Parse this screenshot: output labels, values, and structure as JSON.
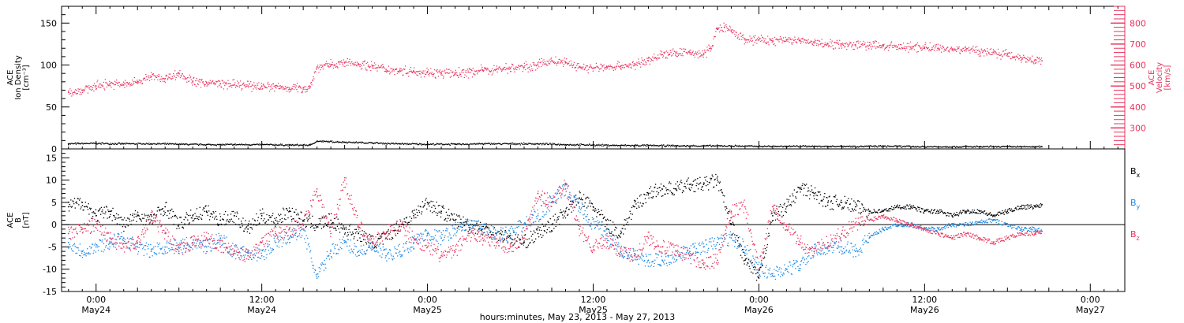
{
  "chart_data": [
    {
      "type": "scatter",
      "panel": "top",
      "ylabel_left": [
        "ACE",
        "Ion Density",
        "[cm⁻³]"
      ],
      "ylabel_right": [
        "ACE",
        "Velocity",
        "[km/s]"
      ],
      "ylim_left": [
        0,
        170
      ],
      "yticks_left": [
        0,
        50,
        100,
        150
      ],
      "ylim_right": [
        200,
        880
      ],
      "yticks_right": [
        300,
        400,
        500,
        600,
        700,
        800
      ],
      "colors": {
        "density": "#000000",
        "velocity": "#e8335e"
      },
      "series": [
        {
          "key": "density",
          "axis": "left",
          "x_hours": [
            -2,
            0,
            2,
            4,
            6,
            8,
            10,
            12,
            14,
            15.5,
            16,
            18,
            20,
            22,
            24,
            26,
            28,
            30,
            32,
            34,
            36,
            38,
            40,
            42,
            44,
            46,
            48,
            50,
            52,
            54,
            56,
            58,
            60,
            62,
            64,
            66,
            68,
            68.5
          ],
          "values": [
            6,
            6.5,
            6,
            6,
            5.5,
            5,
            5,
            5,
            4.5,
            4.5,
            9,
            8,
            7,
            6,
            5.5,
            5.5,
            6,
            6,
            6,
            5,
            4.5,
            4,
            4,
            3.5,
            3.5,
            3.5,
            3,
            3,
            3,
            3,
            3,
            3,
            2.5,
            2.5,
            2.5,
            2.5,
            2.5,
            2.5
          ]
        },
        {
          "key": "velocity",
          "axis": "right",
          "x_hours": [
            -2,
            -1,
            0,
            1,
            2,
            3,
            4,
            5,
            6,
            7,
            8,
            9,
            10,
            11,
            12,
            13,
            14,
            15,
            15.5,
            16,
            17,
            18,
            19,
            20,
            21,
            22,
            23,
            24,
            25,
            26,
            27,
            28,
            29,
            30,
            31,
            32,
            33,
            34,
            35,
            36,
            37,
            38,
            39,
            40,
            41,
            42,
            43,
            44,
            44.5,
            45,
            45.5,
            46,
            47,
            48,
            49,
            50,
            51,
            52,
            53,
            54,
            55,
            56,
            57,
            58,
            59,
            60,
            61,
            62,
            63,
            64,
            65,
            66,
            67,
            68,
            68.5
          ],
          "values": [
            470,
            480,
            500,
            510,
            505,
            520,
            545,
            535,
            560,
            520,
            515,
            510,
            505,
            500,
            500,
            495,
            490,
            490,
            495,
            590,
            600,
            610,
            605,
            595,
            580,
            575,
            570,
            565,
            560,
            560,
            565,
            575,
            580,
            585,
            590,
            600,
            620,
            610,
            590,
            585,
            590,
            595,
            600,
            620,
            650,
            655,
            660,
            650,
            680,
            770,
            780,
            760,
            720,
            720,
            715,
            720,
            715,
            705,
            700,
            700,
            695,
            695,
            690,
            685,
            685,
            685,
            680,
            675,
            675,
            665,
            660,
            650,
            635,
            625,
            620
          ]
        }
      ]
    },
    {
      "type": "scatter",
      "panel": "bottom",
      "ylabel_left": [
        "ACE",
        "B",
        "[nT]"
      ],
      "ylim_left": [
        -15,
        17
      ],
      "yticks_left": [
        -15,
        -10,
        -5,
        0,
        5,
        10,
        15
      ],
      "colors": {
        "Bx": "#000000",
        "By": "#1e88e5",
        "Bz": "#e8335e"
      },
      "legend": [
        {
          "key": "Bx",
          "label": "B",
          "subscript": "x"
        },
        {
          "key": "By",
          "label": "B",
          "subscript": "y"
        },
        {
          "key": "Bz",
          "label": "B",
          "subscript": "z"
        }
      ],
      "series": [
        {
          "key": "Bx",
          "x_hours": [
            -2,
            -1,
            0,
            1,
            2,
            3,
            4,
            5,
            6,
            7,
            8,
            9,
            10,
            11,
            12,
            13,
            14,
            15,
            16,
            17,
            18,
            19,
            20,
            21,
            22,
            23,
            24,
            25,
            26,
            27,
            28,
            29,
            30,
            31,
            32,
            33,
            34,
            35,
            36,
            37,
            38,
            39,
            40,
            41,
            42,
            43,
            44,
            45,
            46,
            47,
            48,
            49,
            50,
            51,
            52,
            53,
            54,
            55,
            56,
            57,
            58,
            59,
            60,
            61,
            62,
            63,
            64,
            65,
            66,
            67,
            68,
            68.5
          ],
          "values": [
            4,
            5,
            2,
            3,
            0,
            2,
            1,
            4,
            0,
            2,
            3,
            1,
            2,
            -1,
            2,
            1,
            3,
            1,
            0,
            1,
            -1,
            -2,
            -4,
            -3,
            0,
            2,
            5,
            3,
            1,
            0,
            -1,
            -2,
            -3,
            -4,
            -2,
            0,
            3,
            6,
            4,
            0,
            -2,
            4,
            7,
            8,
            8,
            9,
            9,
            10,
            0,
            -8,
            -12,
            2,
            4,
            8,
            7,
            5,
            5,
            4,
            3,
            3,
            4,
            4,
            3,
            3,
            2,
            3,
            3,
            2,
            3,
            4,
            4,
            4.5
          ]
        },
        {
          "key": "By",
          "x_hours": [
            -2,
            -1,
            0,
            1,
            2,
            3,
            4,
            5,
            6,
            7,
            8,
            9,
            10,
            11,
            12,
            13,
            14,
            15,
            16,
            17,
            18,
            19,
            20,
            21,
            22,
            23,
            24,
            25,
            26,
            27,
            28,
            29,
            30,
            31,
            32,
            33,
            34,
            35,
            36,
            37,
            38,
            39,
            40,
            41,
            42,
            43,
            44,
            45,
            46,
            47,
            48,
            49,
            50,
            51,
            52,
            53,
            54,
            55,
            56,
            57,
            58,
            59,
            60,
            61,
            62,
            63,
            64,
            65,
            66,
            67,
            68,
            68.5
          ],
          "values": [
            -4,
            -6,
            -5,
            -4,
            -3,
            -5,
            -6,
            -5,
            -5,
            -4,
            -5,
            -3,
            -6,
            -6,
            -7,
            -4,
            -3,
            -1,
            -12,
            -6,
            -4,
            -6,
            -5,
            -7,
            -6,
            -4,
            -2,
            -3,
            -1,
            0,
            -1,
            -2,
            -2,
            0,
            2,
            5,
            8,
            4,
            0,
            -2,
            -6,
            -7,
            -8,
            -8,
            -7,
            -6,
            -5,
            -4,
            -3,
            -5,
            -10,
            -11,
            -10,
            -9,
            -6,
            -5,
            -5,
            -6,
            -3,
            -1,
            0,
            0,
            -1,
            -1,
            0,
            0,
            0.5,
            1,
            0,
            -1,
            -1,
            -1.5
          ]
        },
        {
          "key": "Bz",
          "x_hours": [
            -2,
            -1,
            0,
            1,
            2,
            3,
            4,
            5,
            6,
            7,
            8,
            9,
            10,
            11,
            12,
            13,
            14,
            15,
            16,
            17,
            18,
            19,
            20,
            21,
            22,
            23,
            24,
            25,
            26,
            27,
            28,
            29,
            30,
            31,
            32,
            33,
            34,
            35,
            36,
            37,
            38,
            39,
            40,
            41,
            42,
            43,
            44,
            45,
            46,
            47,
            48,
            49,
            50,
            51,
            52,
            53,
            54,
            55,
            56,
            57,
            58,
            59,
            60,
            61,
            62,
            63,
            64,
            65,
            66,
            67,
            68,
            68.5
          ],
          "values": [
            -2,
            -1,
            0,
            -3,
            -5,
            -4,
            2,
            -2,
            -6,
            -4,
            -3,
            -5,
            -6,
            -7,
            -4,
            -2,
            -1,
            0,
            8,
            -2,
            10,
            0,
            -4,
            -2,
            0,
            -3,
            -5,
            -7,
            -6,
            -2,
            -3,
            -4,
            -5,
            -3,
            7,
            5,
            9,
            -1,
            -5,
            -4,
            -6,
            -7,
            -3,
            -5,
            -6,
            -7,
            -9,
            -8,
            3,
            4,
            -10,
            4,
            0,
            -4,
            -6,
            -4,
            -2,
            0,
            1,
            2,
            1,
            0,
            -1,
            -2,
            -3,
            -2,
            -3,
            -4,
            -3,
            -2,
            -2,
            -1.5
          ]
        }
      ]
    }
  ],
  "x_axis": {
    "xlim_hours": [
      -2.5,
      74.5
    ],
    "tick_hours": [
      0,
      12,
      24,
      36,
      48,
      60,
      72
    ],
    "tick_labels": [
      {
        "time": "0:00",
        "date": "May24"
      },
      {
        "time": "12:00",
        "date": "May24"
      },
      {
        "time": "0:00",
        "date": "May25"
      },
      {
        "time": "12:00",
        "date": "May25"
      },
      {
        "time": "0:00",
        "date": "May26"
      },
      {
        "time": "12:00",
        "date": "May26"
      },
      {
        "time": "0:00",
        "date": "May27"
      }
    ],
    "label": "hours:minutes, May 23, 2013 - May 27, 2013"
  }
}
